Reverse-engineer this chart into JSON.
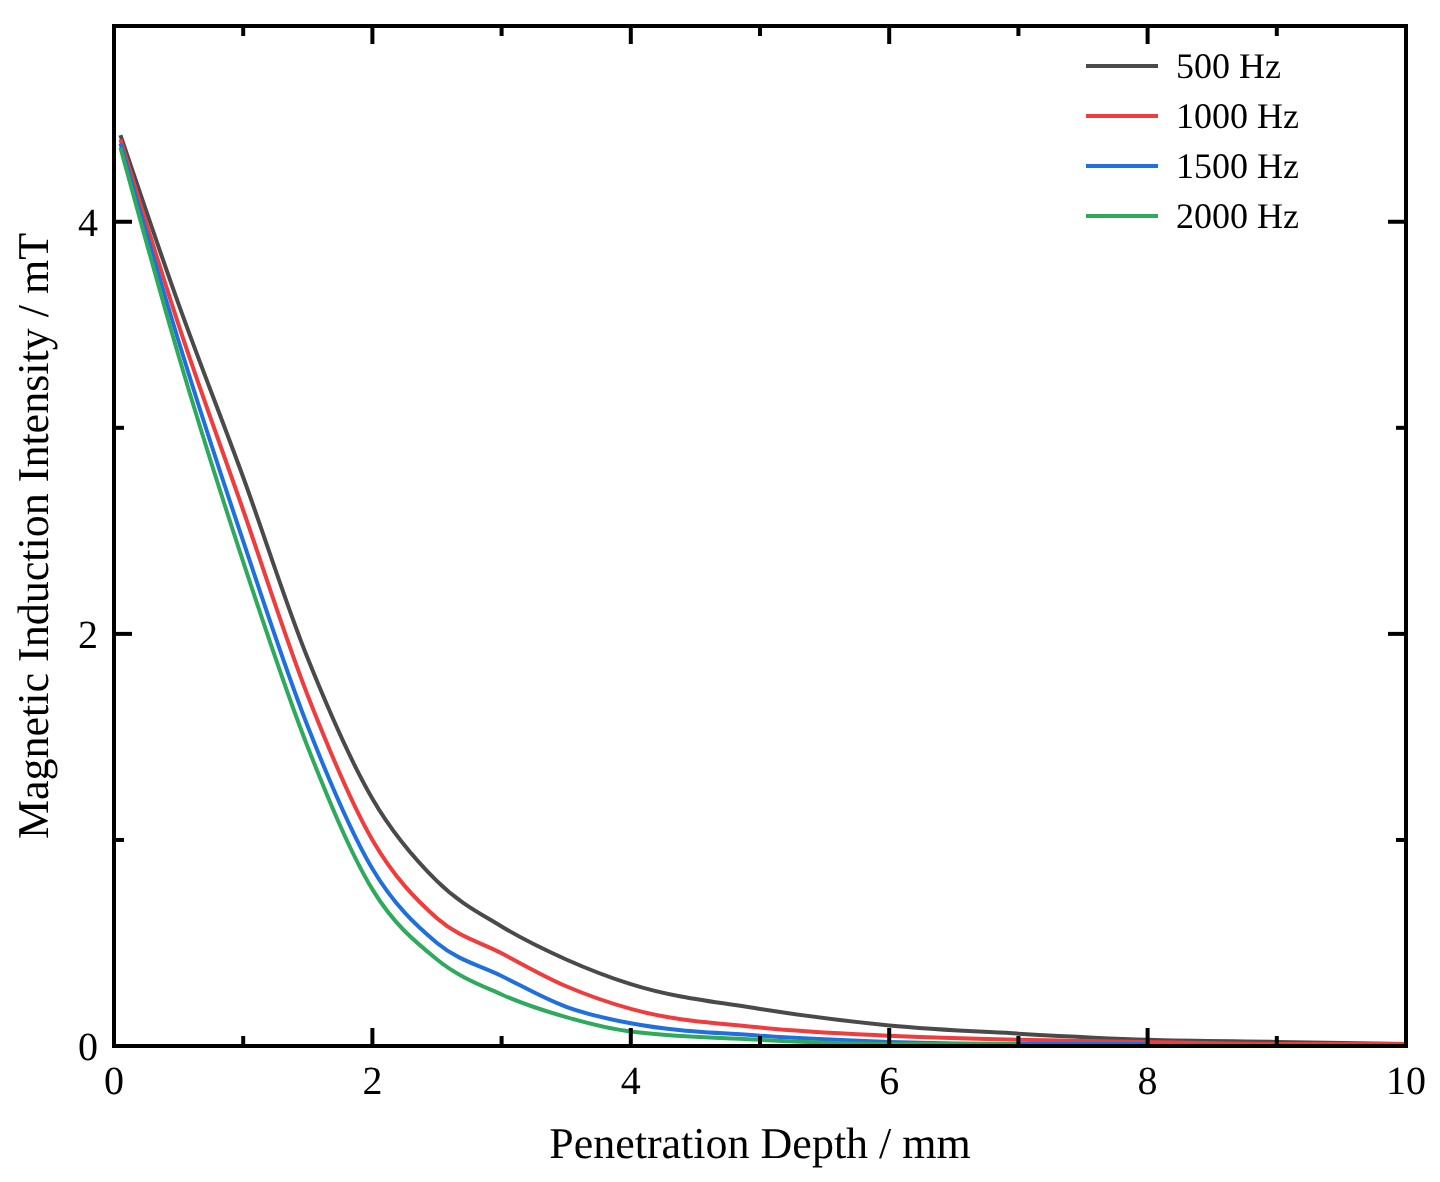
{
  "chart_data": {
    "type": "line",
    "xlabel": "Penetration Depth / mm",
    "ylabel": "Magnetic Induction Intensity / mT",
    "x": [
      0.05,
      0.5,
      1,
      1.5,
      2,
      2.5,
      3,
      3.5,
      4,
      5,
      6,
      7,
      8,
      9,
      10
    ],
    "xlim": [
      0,
      10
    ],
    "ylim": [
      0,
      4.95
    ],
    "xticks": [
      0,
      {
        "value": 1,
        "label": null
      },
      2,
      {
        "value": 3,
        "label": null
      },
      4,
      {
        "value": 5,
        "label": null
      },
      6,
      {
        "value": 7,
        "label": null
      },
      8,
      {
        "value": 9,
        "label": null
      },
      10
    ],
    "yticks": [
      0,
      {
        "value": 1,
        "label": null
      },
      2,
      {
        "value": 3,
        "label": null
      },
      4
    ],
    "legend": "top right",
    "grid": false,
    "line_style": "solid",
    "marker": "none",
    "series": [
      {
        "name": "500 Hz",
        "color": "#4a4a4a",
        "values": [
          4.42,
          3.6,
          2.76,
          1.88,
          1.2,
          0.8,
          0.58,
          0.42,
          0.3,
          0.18,
          0.1,
          0.06,
          0.03,
          0.02,
          0.01
        ]
      },
      {
        "name": "1000 Hz",
        "color": "#f03c3c",
        "values": [
          4.4,
          3.5,
          2.6,
          1.7,
          1.0,
          0.62,
          0.45,
          0.29,
          0.18,
          0.09,
          0.05,
          0.03,
          0.02,
          0.01,
          0.01
        ]
      },
      {
        "name": "1500 Hz",
        "color": "#1f6fe0",
        "values": [
          4.38,
          3.42,
          2.45,
          1.55,
          0.86,
          0.5,
          0.34,
          0.19,
          0.11,
          0.05,
          0.02,
          0.01,
          0.01,
          null,
          null
        ]
      },
      {
        "name": "2000 Hz",
        "color": "#2eaa5c",
        "values": [
          4.36,
          3.35,
          2.35,
          1.45,
          0.76,
          0.42,
          0.25,
          0.14,
          0.07,
          0.03,
          0.01,
          0.01,
          null,
          null,
          null
        ]
      }
    ]
  }
}
